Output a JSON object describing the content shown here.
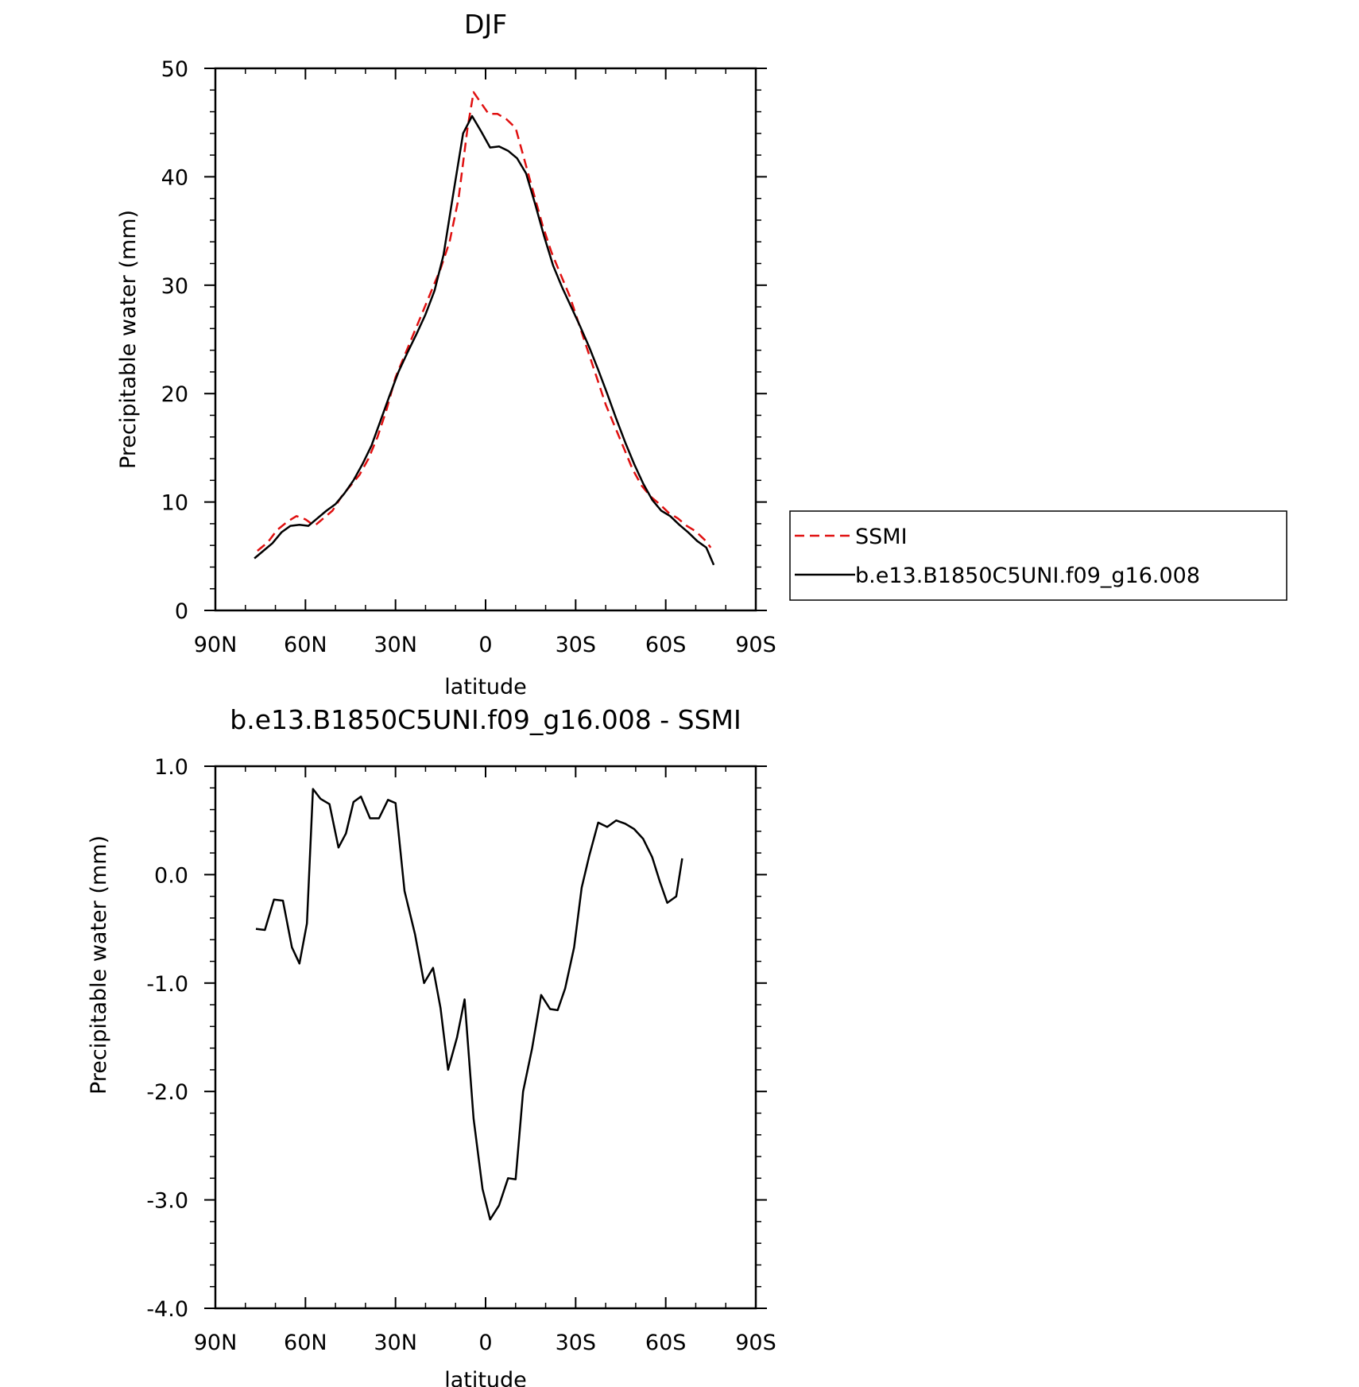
{
  "chart_data": [
    {
      "type": "line",
      "title": "DJF",
      "xlabel": "latitude",
      "ylabel": "Precipitable water (mm)",
      "xlim": [
        90,
        -90
      ],
      "ylim": [
        0,
        50
      ],
      "x_ticks": [
        {
          "value": 90,
          "label": "90N"
        },
        {
          "value": 60,
          "label": "60N"
        },
        {
          "value": 30,
          "label": "30N"
        },
        {
          "value": 0,
          "label": "0"
        },
        {
          "value": -30,
          "label": "30S"
        },
        {
          "value": -60,
          "label": "60S"
        },
        {
          "value": -90,
          "label": "90S"
        }
      ],
      "y_ticks": [
        {
          "value": 0,
          "label": "0"
        },
        {
          "value": 10,
          "label": "10"
        },
        {
          "value": 20,
          "label": "20"
        },
        {
          "value": 30,
          "label": "30"
        },
        {
          "value": 40,
          "label": "40"
        },
        {
          "value": 50,
          "label": "50"
        }
      ],
      "legend": "right",
      "series": [
        {
          "name": "SSMI",
          "color": "#e01010",
          "dash": true,
          "points": [
            [
              76,
              5.5
            ],
            [
              72.5,
              6.3
            ],
            [
              69.5,
              7.4
            ],
            [
              66,
              8.2
            ],
            [
              63,
              8.7
            ],
            [
              60,
              8.4
            ],
            [
              57,
              7.8
            ],
            [
              54,
              8.5
            ],
            [
              51,
              9.2
            ],
            [
              48,
              10.5
            ],
            [
              45,
              11.5
            ],
            [
              42,
              12.5
            ],
            [
              39,
              14.0
            ],
            [
              36,
              16.0
            ],
            [
              33,
              18.5
            ],
            [
              30,
              21.5
            ],
            [
              27,
              23.5
            ],
            [
              24,
              25.5
            ],
            [
              21,
              27.5
            ],
            [
              18,
              29.5
            ],
            [
              15,
              31.5
            ],
            [
              12,
              34.0
            ],
            [
              9,
              38.0
            ],
            [
              6,
              44.5
            ],
            [
              4,
              47.8
            ],
            [
              2,
              47.0
            ],
            [
              -1,
              45.8
            ],
            [
              -4,
              45.8
            ],
            [
              -7,
              45.3
            ],
            [
              -10,
              44.5
            ],
            [
              -13,
              41.5
            ],
            [
              -16,
              38.5
            ],
            [
              -19,
              35.5
            ],
            [
              -22,
              33.0
            ],
            [
              -25,
              31.0
            ],
            [
              -28,
              29.0
            ],
            [
              -31,
              26.5
            ],
            [
              -34,
              24.0
            ],
            [
              -37,
              21.5
            ],
            [
              -40,
              19.0
            ],
            [
              -43,
              17.0
            ],
            [
              -46,
              15.0
            ],
            [
              -49,
              13.0
            ],
            [
              -52,
              11.5
            ],
            [
              -55,
              10.5
            ],
            [
              -58,
              9.8
            ],
            [
              -61,
              9.0
            ],
            [
              -64,
              8.5
            ],
            [
              -67,
              7.8
            ],
            [
              -70,
              7.3
            ],
            [
              -73,
              6.5
            ],
            [
              -75,
              5.8
            ]
          ]
        },
        {
          "name": "b.e13.B1850C5UNI.f09_g16.008",
          "color": "#000000",
          "dash": false,
          "points": [
            [
              77,
              4.8
            ],
            [
              74,
              5.5
            ],
            [
              71,
              6.2
            ],
            [
              68,
              7.2
            ],
            [
              65,
              7.8
            ],
            [
              62,
              7.9
            ],
            [
              59,
              7.8
            ],
            [
              56,
              8.5
            ],
            [
              53,
              9.2
            ],
            [
              50,
              9.8
            ],
            [
              47,
              10.8
            ],
            [
              44,
              12.0
            ],
            [
              41,
              13.5
            ],
            [
              38,
              15.2
            ],
            [
              35,
              17.5
            ],
            [
              32,
              19.8
            ],
            [
              29,
              22.0
            ],
            [
              26,
              23.8
            ],
            [
              23,
              25.5
            ],
            [
              20,
              27.3
            ],
            [
              17,
              29.5
            ],
            [
              14,
              32.8
            ],
            [
              11,
              38.0
            ],
            [
              7.5,
              44.0
            ],
            [
              4.5,
              45.6
            ],
            [
              1.5,
              44.2
            ],
            [
              -1.5,
              42.7
            ],
            [
              -4.5,
              42.8
            ],
            [
              -7.5,
              42.4
            ],
            [
              -10.5,
              41.7
            ],
            [
              -13.5,
              40.3
            ],
            [
              -16.5,
              37.5
            ],
            [
              -19.5,
              34.5
            ],
            [
              -22.5,
              31.8
            ],
            [
              -25.5,
              29.8
            ],
            [
              -28.5,
              28.0
            ],
            [
              -31.5,
              26.2
            ],
            [
              -34.5,
              24.3
            ],
            [
              -37.5,
              22.2
            ],
            [
              -40.5,
              20.0
            ],
            [
              -43.5,
              17.7
            ],
            [
              -46.5,
              15.5
            ],
            [
              -49.5,
              13.5
            ],
            [
              -52.5,
              11.7
            ],
            [
              -55.5,
              10.2
            ],
            [
              -58.5,
              9.2
            ],
            [
              -61.5,
              8.7
            ],
            [
              -64.5,
              7.9
            ],
            [
              -67.5,
              7.2
            ],
            [
              -70.5,
              6.4
            ],
            [
              -73.5,
              5.8
            ],
            [
              -76,
              4.2
            ]
          ]
        }
      ]
    },
    {
      "type": "line",
      "title": "b.e13.B1850C5UNI.f09_g16.008 - SSMI",
      "xlabel": "latitude",
      "ylabel": "Precipitable water (mm)",
      "xlim": [
        90,
        -90
      ],
      "ylim": [
        -4.0,
        1.0
      ],
      "x_ticks": [
        {
          "value": 90,
          "label": "90N"
        },
        {
          "value": 60,
          "label": "60N"
        },
        {
          "value": 30,
          "label": "30N"
        },
        {
          "value": 0,
          "label": "0"
        },
        {
          "value": -30,
          "label": "30S"
        },
        {
          "value": -60,
          "label": "60S"
        },
        {
          "value": -90,
          "label": "90S"
        }
      ],
      "y_ticks": [
        {
          "value": 1.0,
          "label": "1.0"
        },
        {
          "value": 0.0,
          "label": "0.0"
        },
        {
          "value": -1.0,
          "label": "-1.0"
        },
        {
          "value": -2.0,
          "label": "-2.0"
        },
        {
          "value": -3.0,
          "label": "-3.0"
        },
        {
          "value": -4.0,
          "label": "-4.0"
        }
      ],
      "series": [
        {
          "color": "#000000",
          "dash": false,
          "points": [
            [
              76.5,
              -0.5
            ],
            [
              73.5,
              -0.51
            ],
            [
              70.5,
              -0.23
            ],
            [
              67.5,
              -0.24
            ],
            [
              64.5,
              -0.67
            ],
            [
              62,
              -0.82
            ],
            [
              59.5,
              -0.45
            ],
            [
              57.5,
              0.79
            ],
            [
              55,
              0.7
            ],
            [
              52,
              0.65
            ],
            [
              49,
              0.25
            ],
            [
              46.5,
              0.38
            ],
            [
              44,
              0.67
            ],
            [
              41.5,
              0.72
            ],
            [
              38.5,
              0.52
            ],
            [
              35.5,
              0.52
            ],
            [
              32.5,
              0.69
            ],
            [
              30,
              0.66
            ],
            [
              27,
              -0.15
            ],
            [
              23.5,
              -0.55
            ],
            [
              20.5,
              -1.0
            ],
            [
              17.5,
              -0.86
            ],
            [
              15,
              -1.23
            ],
            [
              12.5,
              -1.8
            ],
            [
              9.5,
              -1.5
            ],
            [
              7,
              -1.15
            ],
            [
              4,
              -2.25
            ],
            [
              1,
              -2.9
            ],
            [
              -1.5,
              -3.18
            ],
            [
              -4.5,
              -3.05
            ],
            [
              -7.5,
              -2.8
            ],
            [
              -10,
              -2.81
            ],
            [
              -12.5,
              -2.0
            ],
            [
              -15.5,
              -1.6
            ],
            [
              -18.5,
              -1.11
            ],
            [
              -21.5,
              -1.24
            ],
            [
              -24,
              -1.25
            ],
            [
              -26.5,
              -1.05
            ],
            [
              -29.5,
              -0.67
            ],
            [
              -32,
              -0.12
            ],
            [
              -34.5,
              0.17
            ],
            [
              -37.5,
              0.48
            ],
            [
              -40.5,
              0.44
            ],
            [
              -43.5,
              0.5
            ],
            [
              -46.5,
              0.47
            ],
            [
              -49.5,
              0.42
            ],
            [
              -52.5,
              0.33
            ],
            [
              -55.5,
              0.16
            ],
            [
              -58,
              -0.06
            ],
            [
              -60.5,
              -0.26
            ],
            [
              -63.5,
              -0.2
            ],
            [
              -65.5,
              0.15
            ]
          ]
        }
      ]
    }
  ]
}
